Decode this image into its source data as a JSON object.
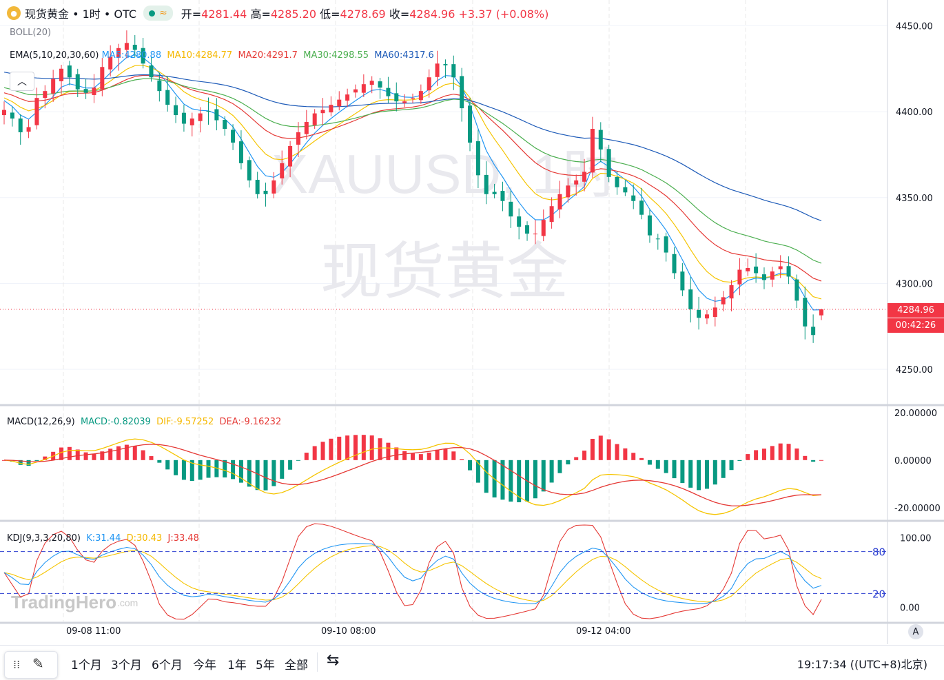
{
  "header": {
    "symbol_title": "现货黄金 • 1时 • OTC",
    "open_label": "开=",
    "open": "4281.44",
    "high_label": "高=",
    "high": "4285.20",
    "low_label": "低=",
    "low": "4278.69",
    "close_label": "收=",
    "close": "4284.96",
    "change": "+3.37 (+0.08%)"
  },
  "indicators": {
    "boll": "BOLL(20)",
    "ema": "EMA(5,10,20,30,60)",
    "ma5": "MA5:4280.88",
    "ma10": "MA10:4284.77",
    "ma20": "MA20:4291.7",
    "ma30": "MA30:4298.55",
    "ma60": "MA60:4317.6",
    "macd_title": "MACD(12,26,9)",
    "macd_val": "MACD:-0.82039",
    "dif_val": "DIF:-9.57252",
    "dea_val": "DEA:-9.16232",
    "kdj_title": "KDJ(9,3,3,20,80)",
    "k_val": "K:31.44",
    "d_val": "D:30.43",
    "j_val": "J:33.48"
  },
  "watermark": {
    "line1": "XAUUSD, 1时",
    "line2": "现货黄金",
    "brand": "TradingHero",
    "brand_suffix": ".com"
  },
  "price_axis": {
    "labels": [
      "4450.00",
      "4400.00",
      "4350.00",
      "4300.00",
      "4250.00"
    ],
    "current_price": "4284.96",
    "countdown": "00:42:26"
  },
  "macd_axis": [
    "20.00000",
    "0.00000",
    "-20.00000"
  ],
  "kdj_axis": {
    "labels": [
      "100.00",
      "0.00"
    ],
    "level_high": "80",
    "level_low": "20"
  },
  "time_axis": [
    "09-08 11:00",
    "09-10 08:00",
    "09-12 04:00"
  ],
  "bottom_bar": {
    "timeframes": [
      "1个月",
      "3个月",
      "6个月",
      "今年",
      "1年",
      "5年",
      "全部"
    ],
    "clock": "19:17:34 ((UTC+8)北京)",
    "auto_label": "A"
  },
  "colors": {
    "up": "#f23645",
    "down": "#089981",
    "ma5": "#2196f3",
    "ma10": "#f5c400",
    "ma20": "#e53935",
    "ma30": "#4caf50",
    "ma60": "#1e5bb8",
    "dash": "#2c3fd1"
  },
  "chart_data": [
    {
      "type": "candlestick",
      "title": "XAUUSD, 1时",
      "ylim": [
        4230,
        4465
      ],
      "x_labels": [
        "09-08 11:00",
        "09-10 08:00",
        "09-12 04:00"
      ],
      "ohlc_approx": [
        4401,
        4396,
        4388,
        4391,
        4408,
        4412,
        4419,
        4425,
        4420,
        4413,
        4411,
        4414,
        4426,
        4432,
        4437,
        4440,
        4436,
        4428,
        4420,
        4412,
        4404,
        4398,
        4393,
        4396,
        4399,
        4400,
        4395,
        4390,
        4382,
        4370,
        4360,
        4352,
        4352,
        4360,
        4370,
        4380,
        4388,
        4394,
        4399,
        4401,
        4404,
        4407,
        4410,
        4413,
        4416,
        4418,
        4414,
        4409,
        4406,
        4406,
        4408,
        4412,
        4420,
        4428,
        4427,
        4420,
        4402,
        4382,
        4363,
        4352,
        4352,
        4348,
        4339,
        4333,
        4329,
        4329,
        4337,
        4345,
        4352,
        4357,
        4360,
        4365,
        4390,
        4378,
        4362,
        4356,
        4353,
        4348,
        4340,
        4328,
        4326,
        4318,
        4306,
        4296,
        4285,
        4280,
        4282,
        4286,
        4292,
        4299,
        4308,
        4309,
        4306,
        4302,
        4307,
        4310,
        4304,
        4290,
        4275,
        4270,
        4285
      ],
      "last_open": 4281.44,
      "last_high": 4285.2,
      "last_low": 4278.69,
      "last_close": 4284.96
    },
    {
      "type": "line",
      "title": "MACD(12,26,9)",
      "series": [
        {
          "name": "MACD",
          "last": -0.82039
        },
        {
          "name": "DIF",
          "last": -9.57252
        },
        {
          "name": "DEA",
          "last": -9.16232
        }
      ],
      "ylim": [
        -25,
        22
      ]
    },
    {
      "type": "line",
      "title": "KDJ(9,3,3,20,80)",
      "series": [
        {
          "name": "K",
          "last": 31.44
        },
        {
          "name": "D",
          "last": 30.43
        },
        {
          "name": "J",
          "last": 33.48
        }
      ],
      "ylim": [
        -20,
        120
      ]
    }
  ]
}
